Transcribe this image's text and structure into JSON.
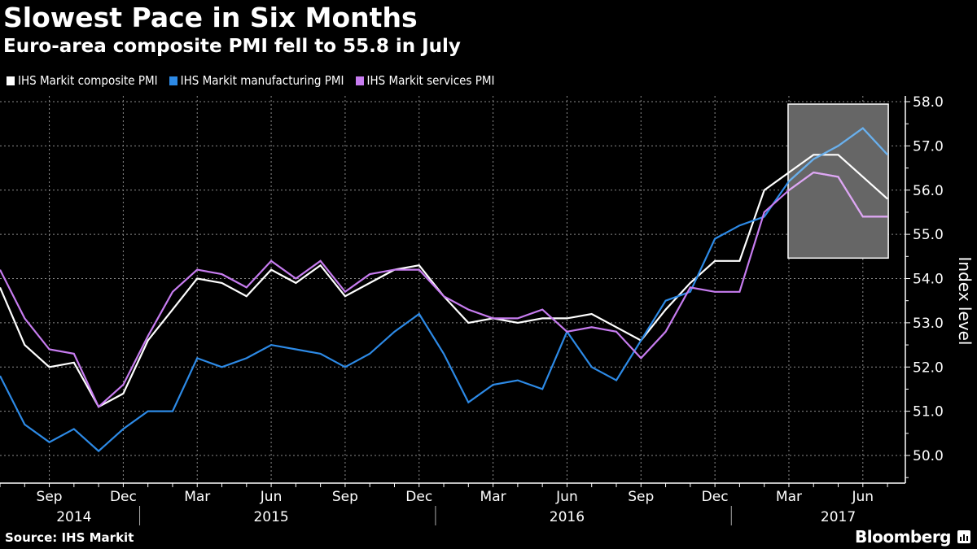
{
  "header": {
    "title": "Slowest Pace in Six Months",
    "subtitle": "Euro-area composite PMI fell to 55.8 in July"
  },
  "footer": {
    "source": "Source: IHS Markit",
    "brand": "Bloomberg",
    "brand_icon": "bloomberg-chart-icon"
  },
  "chart_data": {
    "type": "line",
    "title": "Slowest Pace in Six Months",
    "subtitle": "Euro-area composite PMI fell to 55.8 in July",
    "xlabel": "",
    "ylabel": "Index level",
    "ylim": [
      49.4,
      58.1
    ],
    "yticks": [
      "58.0",
      "57.0",
      "56.0",
      "55.0",
      "54.0",
      "53.0",
      "52.0",
      "51.0",
      "50.0"
    ],
    "ytick_values": [
      58,
      57,
      56,
      55,
      54,
      53,
      52,
      51,
      50
    ],
    "grid": true,
    "legend_position": "top-left",
    "x": [
      "Jul 2014",
      "Aug 2014",
      "Sep 2014",
      "Oct 2014",
      "Nov 2014",
      "Dec 2014",
      "Jan 2015",
      "Feb 2015",
      "Mar 2015",
      "Apr 2015",
      "May 2015",
      "Jun 2015",
      "Jul 2015",
      "Aug 2015",
      "Sep 2015",
      "Oct 2015",
      "Nov 2015",
      "Dec 2015",
      "Jan 2016",
      "Feb 2016",
      "Mar 2016",
      "Apr 2016",
      "May 2016",
      "Jun 2016",
      "Jul 2016",
      "Aug 2016",
      "Sep 2016",
      "Oct 2016",
      "Nov 2016",
      "Dec 2016",
      "Jan 2017",
      "Feb 2017",
      "Mar 2017",
      "Apr 2017",
      "May 2017",
      "Jun 2017",
      "Jul 2017"
    ],
    "x_month_labels": [
      {
        "label": "Sep",
        "index": 2
      },
      {
        "label": "Dec",
        "index": 5
      },
      {
        "label": "Mar",
        "index": 8
      },
      {
        "label": "Jun",
        "index": 11
      },
      {
        "label": "Sep",
        "index": 14
      },
      {
        "label": "Dec",
        "index": 17
      },
      {
        "label": "Mar",
        "index": 20
      },
      {
        "label": "Jun",
        "index": 23
      },
      {
        "label": "Sep",
        "index": 26
      },
      {
        "label": "Dec",
        "index": 29
      },
      {
        "label": "Mar",
        "index": 32
      },
      {
        "label": "Jun",
        "index": 35
      }
    ],
    "x_year_labels": [
      {
        "label": "2014",
        "index": 3
      },
      {
        "label": "2015",
        "index": 11
      },
      {
        "label": "2016",
        "index": 23
      },
      {
        "label": "2017",
        "index": 34
      }
    ],
    "year_separators": [
      5.5,
      17.5,
      29.5
    ],
    "series": [
      {
        "name": "IHS Markit composite PMI",
        "color": "#ffffff",
        "values": [
          53.8,
          52.5,
          52.0,
          52.1,
          51.1,
          51.4,
          52.6,
          53.3,
          54.0,
          53.9,
          53.6,
          54.2,
          53.9,
          54.3,
          53.6,
          53.9,
          54.2,
          54.3,
          53.6,
          53.0,
          53.1,
          53.0,
          53.1,
          53.1,
          53.2,
          52.9,
          52.6,
          53.3,
          53.9,
          54.4,
          54.4,
          56.0,
          56.4,
          56.8,
          56.8,
          56.3,
          55.8
        ]
      },
      {
        "name": "IHS Markit manufacturing PMI",
        "color": "#2d8ae6",
        "highlight_color": "#6cb0ea",
        "values": [
          51.8,
          50.7,
          50.3,
          50.6,
          50.1,
          50.6,
          51.0,
          51.0,
          52.2,
          52.0,
          52.2,
          52.5,
          52.4,
          52.3,
          52.0,
          52.3,
          52.8,
          53.2,
          52.3,
          51.2,
          51.6,
          51.7,
          51.5,
          52.8,
          52.0,
          51.7,
          52.6,
          53.5,
          53.7,
          54.9,
          55.2,
          55.4,
          56.2,
          56.7,
          57.0,
          57.4,
          56.8
        ]
      },
      {
        "name": "IHS Markit services PMI",
        "color": "#c77cf0",
        "highlight_color": "#dda8f2",
        "values": [
          54.2,
          53.1,
          52.4,
          52.3,
          51.1,
          51.6,
          52.7,
          53.7,
          54.2,
          54.1,
          53.8,
          54.4,
          54.0,
          54.4,
          53.7,
          54.1,
          54.2,
          54.2,
          53.6,
          53.3,
          53.1,
          53.1,
          53.3,
          52.8,
          52.9,
          52.8,
          52.2,
          52.8,
          53.8,
          53.7,
          53.7,
          55.5,
          56.0,
          56.4,
          56.3,
          55.4,
          55.4
        ]
      }
    ],
    "highlight_range": {
      "from_index": 32,
      "to_index": 36,
      "y_from": 54.5,
      "y_to": 58.0,
      "color": "#666666"
    }
  }
}
